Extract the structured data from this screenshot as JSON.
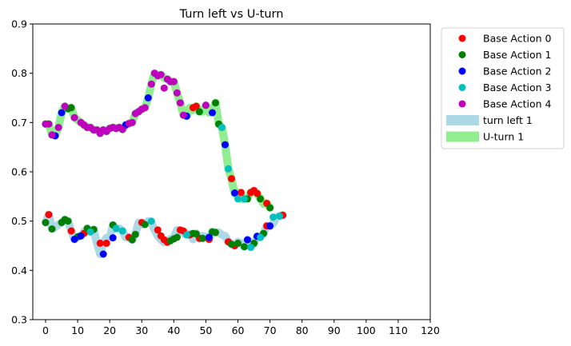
{
  "chart_data": {
    "type": "scatter",
    "title": "Turn left vs U-turn",
    "xlabel": "",
    "ylabel": "",
    "xlim": [
      -4,
      120
    ],
    "ylim": [
      0.3,
      0.9
    ],
    "x_ticks": [
      "0",
      "10",
      "20",
      "30",
      "40",
      "50",
      "60",
      "70",
      "80",
      "90",
      "100",
      "110",
      "120"
    ],
    "y_ticks": [
      "0.3",
      "0.4",
      "0.5",
      "0.6",
      "0.7",
      "0.8",
      "0.9"
    ],
    "grid": false,
    "legend_position": "outside right, top",
    "lines": [
      {
        "name": "turn left 1",
        "color": "#add8e6",
        "x": [
          0,
          1,
          2,
          3,
          4,
          5,
          6,
          7,
          8,
          9,
          10,
          11,
          12,
          13,
          14,
          15,
          16,
          17,
          18,
          19,
          20,
          21,
          22,
          23,
          24,
          25,
          26,
          27,
          28,
          29,
          30,
          31,
          32,
          33,
          34,
          35,
          36,
          37,
          38,
          39,
          40,
          41,
          42,
          43,
          44,
          45,
          46,
          47,
          48,
          49,
          50,
          51,
          52,
          53,
          54,
          55,
          56,
          57,
          58,
          59,
          60,
          61,
          62,
          63,
          64,
          65,
          66,
          67,
          68,
          69,
          70,
          71,
          72,
          73,
          74
        ],
        "y": [
          0.497,
          0.513,
          0.484,
          0.488,
          0.493,
          0.497,
          0.503,
          0.5,
          0.48,
          0.463,
          0.468,
          0.47,
          0.478,
          0.485,
          0.478,
          0.483,
          0.455,
          0.433,
          0.455,
          0.466,
          0.466,
          0.492,
          0.485,
          0.485,
          0.48,
          0.467,
          0.467,
          0.462,
          0.473,
          0.497,
          0.493,
          0.495,
          0.5,
          0.496,
          0.482,
          0.47,
          0.462,
          0.457,
          0.46,
          0.464,
          0.467,
          0.482,
          0.48,
          0.476,
          0.472,
          0.474,
          0.463,
          0.475,
          0.465,
          0.47,
          0.468,
          0.463,
          0.479,
          0.477,
          0.477,
          0.472,
          0.47,
          0.458,
          0.453,
          0.45,
          0.458,
          0.455,
          0.448,
          0.462,
          0.447,
          0.455,
          0.469,
          0.467,
          0.475,
          0.49,
          0.49,
          0.495,
          0.508,
          0.51,
          0.512
        ]
      },
      {
        "name": "U-turn 1",
        "color": "#90ee90",
        "x": [
          0,
          1,
          2,
          3,
          4,
          5,
          6,
          7,
          8,
          9,
          10,
          11,
          12,
          13,
          14,
          15,
          16,
          17,
          18,
          19,
          20,
          21,
          22,
          23,
          24,
          25,
          26,
          27,
          28,
          29,
          30,
          31,
          32,
          33,
          34,
          35,
          36,
          37,
          38,
          39,
          40,
          41,
          42,
          43,
          44,
          45,
          46,
          47,
          48,
          49,
          50,
          51,
          52,
          53,
          54,
          55,
          56,
          57,
          58,
          59,
          60,
          61,
          62,
          63,
          64,
          65,
          66,
          67,
          68,
          69,
          70
        ],
        "y": [
          0.697,
          0.697,
          0.675,
          0.675,
          0.69,
          0.72,
          0.733,
          0.728,
          0.73,
          0.71,
          0.705,
          0.7,
          0.695,
          0.69,
          0.69,
          0.685,
          0.685,
          0.678,
          0.685,
          0.682,
          0.688,
          0.69,
          0.688,
          0.69,
          0.686,
          0.695,
          0.698,
          0.7,
          0.718,
          0.722,
          0.727,
          0.73,
          0.75,
          0.778,
          0.8,
          0.795,
          0.797,
          0.79,
          0.788,
          0.783,
          0.783,
          0.76,
          0.74,
          0.715,
          0.713,
          0.73,
          0.725,
          0.733,
          0.722,
          0.722,
          0.735,
          0.72,
          0.725,
          0.74,
          0.697,
          0.69,
          0.655,
          0.606,
          0.585,
          0.555,
          0.558,
          0.545,
          0.545,
          0.548,
          0.558,
          0.56,
          0.556,
          0.545,
          0.535,
          0.536,
          0.527
        ]
      }
    ],
    "series": [
      {
        "name": "Base Action 0",
        "color": "#ff0000",
        "points": [
          [
            1,
            0.513
          ],
          [
            8,
            0.48
          ],
          [
            12,
            0.475
          ],
          [
            17,
            0.455
          ],
          [
            19,
            0.455
          ],
          [
            26,
            0.467
          ],
          [
            30,
            0.497
          ],
          [
            35,
            0.482
          ],
          [
            36,
            0.47
          ],
          [
            37,
            0.462
          ],
          [
            38,
            0.457
          ],
          [
            42,
            0.482
          ],
          [
            43,
            0.48
          ],
          [
            45,
            0.472
          ],
          [
            46,
            0.73
          ],
          [
            47,
            0.733
          ],
          [
            48,
            0.465
          ],
          [
            51,
            0.463
          ],
          [
            57,
            0.458
          ],
          [
            58,
            0.586
          ],
          [
            59,
            0.45
          ],
          [
            61,
            0.558
          ],
          [
            64,
            0.558
          ],
          [
            65,
            0.562
          ],
          [
            66,
            0.556
          ],
          [
            69,
            0.49
          ],
          [
            69,
            0.536
          ],
          [
            74,
            0.512
          ]
        ]
      },
      {
        "name": "Base Action 1",
        "color": "#008000",
        "points": [
          [
            0,
            0.497
          ],
          [
            2,
            0.484
          ],
          [
            5,
            0.497
          ],
          [
            6,
            0.503
          ],
          [
            7,
            0.728
          ],
          [
            7,
            0.5
          ],
          [
            8,
            0.73
          ],
          [
            10,
            0.468
          ],
          [
            13,
            0.485
          ],
          [
            15,
            0.483
          ],
          [
            21,
            0.492
          ],
          [
            27,
            0.462
          ],
          [
            28,
            0.473
          ],
          [
            31,
            0.493
          ],
          [
            39,
            0.46
          ],
          [
            40,
            0.464
          ],
          [
            41,
            0.467
          ],
          [
            46,
            0.475
          ],
          [
            47,
            0.474
          ],
          [
            48,
            0.722
          ],
          [
            49,
            0.465
          ],
          [
            52,
            0.478
          ],
          [
            53,
            0.74
          ],
          [
            53,
            0.477
          ],
          [
            54,
            0.697
          ],
          [
            58,
            0.453
          ],
          [
            60,
            0.455
          ],
          [
            62,
            0.448
          ],
          [
            63,
            0.545
          ],
          [
            65,
            0.455
          ],
          [
            66,
            0.469
          ],
          [
            67,
            0.545
          ],
          [
            68,
            0.475
          ],
          [
            70,
            0.527
          ]
        ]
      },
      {
        "name": "Base Action 2",
        "color": "#0000ff",
        "points": [
          [
            3,
            0.673
          ],
          [
            5,
            0.72
          ],
          [
            9,
            0.463
          ],
          [
            11,
            0.47
          ],
          [
            18,
            0.433
          ],
          [
            21,
            0.466
          ],
          [
            25,
            0.695
          ],
          [
            32,
            0.75
          ],
          [
            44,
            0.713
          ],
          [
            51,
            0.467
          ],
          [
            52,
            0.72
          ],
          [
            56,
            0.655
          ],
          [
            59,
            0.557
          ],
          [
            63,
            0.462
          ],
          [
            66,
            0.469
          ],
          [
            70,
            0.49
          ]
        ]
      },
      {
        "name": "Base Action 3",
        "color": "#00bfbf",
        "points": [
          [
            14,
            0.478
          ],
          [
            22,
            0.485
          ],
          [
            24,
            0.48
          ],
          [
            33,
            0.5
          ],
          [
            44,
            0.472
          ],
          [
            55,
            0.69
          ],
          [
            57,
            0.606
          ],
          [
            60,
            0.545
          ],
          [
            62,
            0.545
          ],
          [
            64,
            0.447
          ],
          [
            67,
            0.467
          ],
          [
            71,
            0.508
          ],
          [
            73,
            0.51
          ]
        ]
      },
      {
        "name": "Base Action 4",
        "color": "#bf00bf",
        "points": [
          [
            0,
            0.697
          ],
          [
            1,
            0.697
          ],
          [
            2,
            0.675
          ],
          [
            4,
            0.69
          ],
          [
            6,
            0.733
          ],
          [
            9,
            0.71
          ],
          [
            11,
            0.7
          ],
          [
            12,
            0.695
          ],
          [
            13,
            0.69
          ],
          [
            14,
            0.69
          ],
          [
            15,
            0.685
          ],
          [
            16,
            0.685
          ],
          [
            17,
            0.678
          ],
          [
            18,
            0.685
          ],
          [
            19,
            0.682
          ],
          [
            20,
            0.688
          ],
          [
            21,
            0.69
          ],
          [
            22,
            0.688
          ],
          [
            23,
            0.69
          ],
          [
            24,
            0.686
          ],
          [
            26,
            0.698
          ],
          [
            27,
            0.7
          ],
          [
            28,
            0.718
          ],
          [
            29,
            0.722
          ],
          [
            30,
            0.727
          ],
          [
            31,
            0.73
          ],
          [
            33,
            0.778
          ],
          [
            34,
            0.8
          ],
          [
            35,
            0.795
          ],
          [
            36,
            0.797
          ],
          [
            37,
            0.77
          ],
          [
            38,
            0.788
          ],
          [
            39,
            0.783
          ],
          [
            40,
            0.783
          ],
          [
            41,
            0.76
          ],
          [
            42,
            0.74
          ],
          [
            43,
            0.715
          ],
          [
            50,
            0.735
          ]
        ]
      }
    ],
    "legend": [
      "Base Action 0",
      "Base Action 1",
      "Base Action 2",
      "Base Action 3",
      "Base Action 4",
      "turn left 1",
      "U-turn 1"
    ]
  }
}
